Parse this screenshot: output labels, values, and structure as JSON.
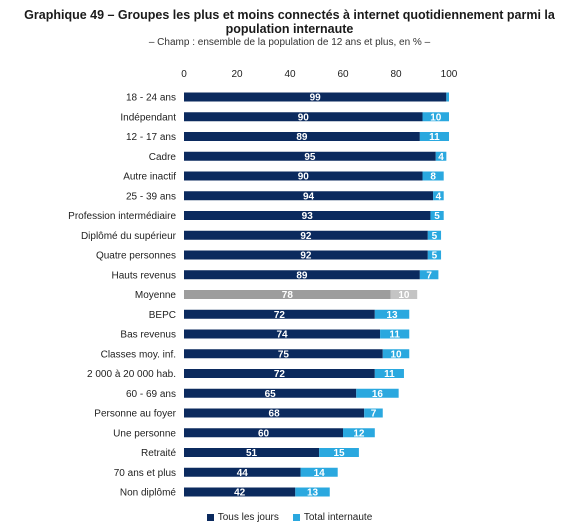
{
  "header": {
    "title_line1": "Graphique 49 – Groupes les plus et moins connectés à internet quotidiennement parmi la",
    "title_line2": "population internaute",
    "subtitle": "– Champ : ensemble de la population de 12 ans et plus, en % –"
  },
  "legend": {
    "series1": "Tous les jours",
    "series2": "Total internaute"
  },
  "colors": {
    "series1": "#0b2a5e",
    "series2": "#2aa8df",
    "average1": "#9d9d9d",
    "average2": "#c4c4c4"
  },
  "chart_data": {
    "type": "bar",
    "orientation": "horizontal",
    "stacked": true,
    "title": "Graphique 49 – Groupes les plus et moins connectés à internet quotidiennement parmi la population internaute",
    "subtitle": "– Champ : ensemble de la population de 12 ans et plus, en % –",
    "xlim": [
      0,
      100
    ],
    "xticks": [
      0,
      20,
      40,
      60,
      80,
      100
    ],
    "axis_position": "top",
    "grid": false,
    "legend_position": "bottom",
    "highlight_category": "Moyenne",
    "categories": [
      "18 - 24 ans",
      "Indépendant",
      "12 - 17 ans",
      "Cadre",
      "Autre inactif",
      "25 - 39 ans",
      "Profession intermédiaire",
      "Diplômé du supérieur",
      "Quatre personnes",
      "Hauts revenus",
      "Moyenne",
      "BEPC",
      "Bas revenus",
      "Classes moy. inf.",
      "2 000 à 20 000 hab.",
      "60 - 69 ans",
      "Personne au foyer",
      "Une personne",
      "Retraité",
      "70 ans et plus",
      "Non diplômé"
    ],
    "series": [
      {
        "name": "Tous les jours",
        "values": [
          99,
          90,
          89,
          95,
          90,
          94,
          93,
          92,
          92,
          89,
          78,
          72,
          74,
          75,
          72,
          65,
          68,
          60,
          51,
          44,
          42
        ]
      },
      {
        "name": "Total internaute",
        "values": [
          1,
          10,
          11,
          4,
          8,
          4,
          5,
          5,
          5,
          7,
          10,
          13,
          11,
          10,
          11,
          16,
          7,
          12,
          15,
          14,
          13
        ]
      }
    ],
    "value_labels_series2": [
      "",
      "10",
      "11",
      "4",
      "8",
      "4",
      "5",
      "5",
      "5",
      "7",
      "10",
      "13",
      "11",
      "10",
      "11",
      "16",
      "7",
      "12",
      "15",
      "14",
      "13"
    ]
  }
}
